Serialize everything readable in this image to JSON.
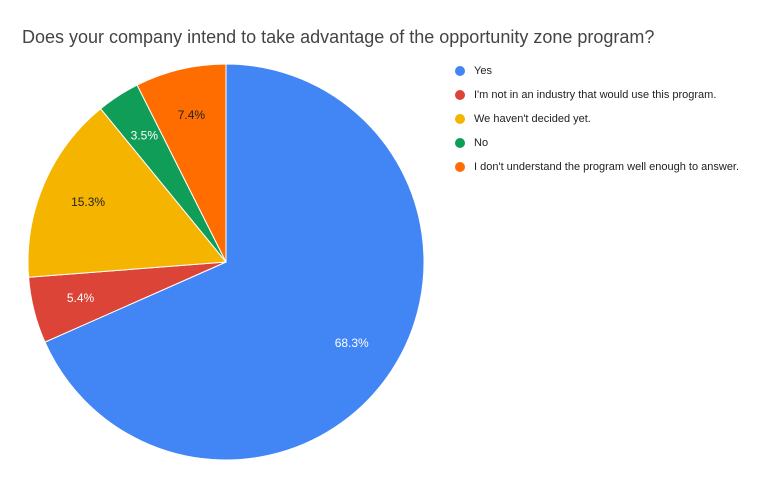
{
  "chart_data": {
    "type": "pie",
    "title": "Does your company intend to take advantage of the opportunity zone program?",
    "categories": [
      "Yes",
      "I'm not in an industry that would use this program.",
      "We haven't decided yet.",
      "No",
      "I don't understand the program well enough to answer."
    ],
    "values": [
      68.3,
      5.4,
      15.3,
      3.5,
      7.4
    ],
    "value_labels": [
      "68.3%",
      "5.4%",
      "15.3%",
      "3.5%",
      "7.4%"
    ],
    "colors": [
      "#4285f4",
      "#db4437",
      "#f4b400",
      "#0f9d58",
      "#ff6d01"
    ],
    "legend": "right"
  }
}
